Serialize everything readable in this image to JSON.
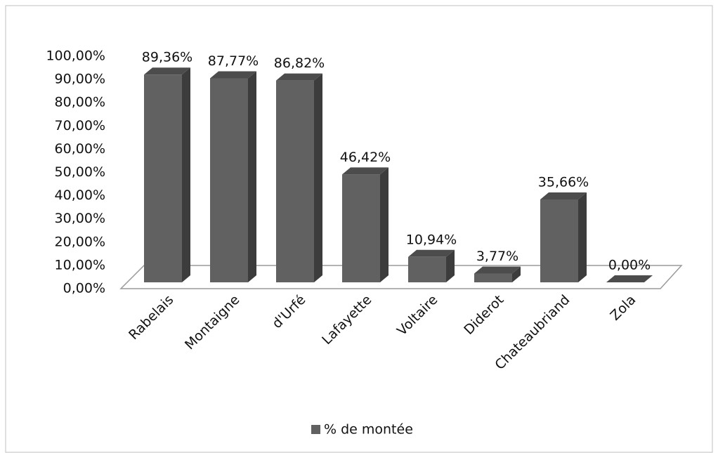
{
  "chart_data": {
    "type": "bar3d",
    "categories": [
      "Rabelais",
      "Montaigne",
      "d'Urfé",
      "Lafayette",
      "Voltaire",
      "Diderot",
      "Chateaubriand",
      "Zola"
    ],
    "series": [
      {
        "name": "% de montée",
        "color": "#616161",
        "values": [
          89.36,
          87.77,
          86.82,
          46.42,
          10.94,
          3.77,
          35.66,
          0.0
        ],
        "value_labels": [
          "89,36%",
          "87,77%",
          "86,82%",
          "46,42%",
          "10,94%",
          "3,77%",
          "35,66%",
          "0,00%"
        ]
      }
    ],
    "ylim": [
      0,
      100
    ],
    "yticks": [
      {
        "value": 0,
        "label": "0,00%"
      },
      {
        "value": 10,
        "label": "10,00%"
      },
      {
        "value": 20,
        "label": "20,00%"
      },
      {
        "value": 30,
        "label": "30,00%"
      },
      {
        "value": 40,
        "label": "40,00%"
      },
      {
        "value": 50,
        "label": "50,00%"
      },
      {
        "value": 60,
        "label": "60,00%"
      },
      {
        "value": 70,
        "label": "70,00%"
      },
      {
        "value": 80,
        "label": "80,00%"
      },
      {
        "value": 90,
        "label": "90,00%"
      },
      {
        "value": 100,
        "label": "100,00%"
      }
    ],
    "grid": false,
    "legend": "bottom"
  }
}
